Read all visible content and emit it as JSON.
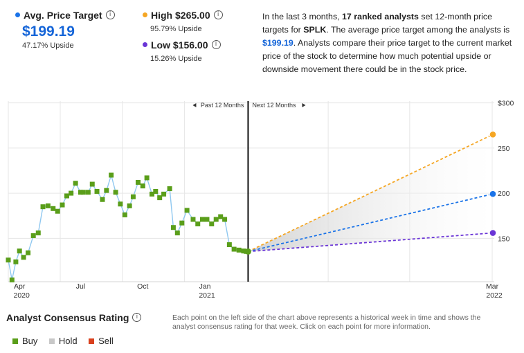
{
  "header": {
    "avg": {
      "label": "Avg. Price Target",
      "value": "$199.19",
      "sub": "47.17% Upside",
      "color": "#1a73e8"
    },
    "high": {
      "label": "High $265.00",
      "sub": "95.79% Upside",
      "color": "#f5a623"
    },
    "low": {
      "label": "Low $156.00",
      "sub": "15.26% Upside",
      "color": "#6a35d6"
    },
    "description": {
      "p1": "In the last 3 months, ",
      "b1": "17 ranked analysts",
      "p2": " set 12-month price targets for ",
      "b2": "SPLK",
      "p3": ". The average price target among the analysts is ",
      "b3": "$199.19",
      "p4": ". Analysts compare their price target to the current market price of the stock to determine how much potential upside or downside movement there could be in the stock price."
    }
  },
  "rating": {
    "title": "Analyst Consensus Rating",
    "note": "Each point on the left side of the chart above represents a historical week in time and shows the analyst consensus rating for that week. Click on each point for more information.",
    "legend": [
      {
        "label": "Buy",
        "color": "#5a9e1a"
      },
      {
        "label": "Hold",
        "color": "#c8c8c8"
      },
      {
        "label": "Sell",
        "color": "#d9411e"
      }
    ]
  },
  "chart_data": {
    "type": "line",
    "past_label": "Past 12 Months",
    "next_label": "Next 12 Months",
    "y_axis_labels": [
      "$300",
      "250",
      "200",
      "150"
    ],
    "ylim": [
      102,
      302
    ],
    "x_ticks": [
      {
        "label": "Apr",
        "sublabel": "2020",
        "t": 0.05
      },
      {
        "label": "Jul",
        "sublabel": "",
        "t": 3.05
      },
      {
        "label": "Oct",
        "sublabel": "",
        "t": 6.1
      },
      {
        "label": "Jan",
        "sublabel": "2021",
        "t": 9.15
      },
      {
        "label": "Mar",
        "sublabel": "2022",
        "t": 23.25
      }
    ],
    "xlim": [
      -0.5,
      23.35
    ],
    "now_t": 11.27,
    "current_price": 135.4,
    "history": {
      "name": "SPLK price",
      "color": "#8fc8f0",
      "marker_color": "#5a9e1a",
      "t": [
        -0.5,
        -0.32,
        -0.13,
        0.05,
        0.25,
        0.47,
        0.73,
        0.97,
        1.2,
        1.45,
        1.7,
        1.92,
        2.15,
        2.37,
        2.58,
        2.8,
        3.05,
        3.18,
        3.42,
        3.62,
        3.85,
        4.12,
        4.32,
        4.55,
        4.77,
        5.0,
        5.22,
        5.45,
        5.63,
        5.87,
        6.1,
        6.3,
        6.55,
        6.73,
        6.93,
        7.13,
        7.42,
        7.6,
        7.8,
        8.02,
        8.27,
        8.57,
        8.8,
        9.03,
        9.25,
        9.48,
        9.7,
        9.92,
        10.12,
        10.35,
        10.58,
        10.82,
        11.05,
        11.18,
        11.27
      ],
      "values": [
        126,
        104,
        124,
        136,
        129,
        134,
        153,
        156,
        185,
        186,
        183,
        180,
        187,
        197,
        200,
        211,
        201,
        201,
        201,
        210,
        202,
        193,
        203,
        220,
        201,
        188,
        176,
        186,
        196,
        212,
        208,
        217,
        199,
        202,
        195,
        199,
        205,
        162,
        156,
        167,
        181,
        171,
        166,
        171,
        171,
        166,
        171,
        174,
        171,
        143,
        138,
        137,
        136,
        135.5,
        135.4
      ]
    },
    "projections": [
      {
        "name": "High",
        "value": 265.0,
        "color": "#f5a623"
      },
      {
        "name": "Average",
        "value": 199.19,
        "color": "#1a73e8"
      },
      {
        "name": "Low",
        "value": 156.0,
        "color": "#6a35d6"
      }
    ]
  }
}
